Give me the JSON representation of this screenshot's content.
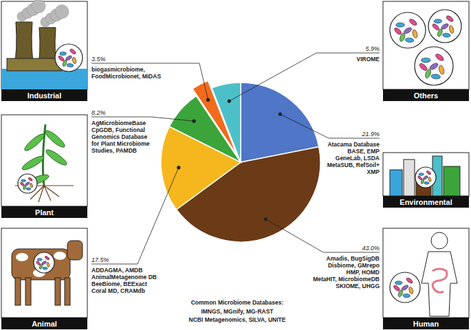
{
  "chart_data": {
    "type": "pie",
    "categories": [
      "Environmental",
      "Human",
      "Animal",
      "Plant",
      "Industrial",
      "Others"
    ],
    "values": [
      21.9,
      43.0,
      17.5,
      8.2,
      3.5,
      5.9
    ],
    "value_labels": [
      "21.9%",
      "43.0%",
      "17.5%",
      "8.2%",
      "3.5%",
      "5.9%"
    ],
    "colors": [
      "#4f76c7",
      "#6b3a17",
      "#f5b71d",
      "#3ba53b",
      "#f26b1d",
      "#4cc0c9"
    ],
    "data_labels": true,
    "databases": [
      [
        "Atacama Database",
        "BASE, EMP",
        "GeneLab, LSDA",
        "MetaSUB, RefSoil+",
        "XMP"
      ],
      [
        "Amadis, BugSigDB",
        "Disbiome, GMrepo",
        "HMP, HOMD",
        "MetaHIT, MicrobiomeDB",
        "SKIOME, UHGG"
      ],
      [
        "ADDAGMA, AMDB",
        "AnimalMetagenome DB",
        "BeeBiome, BEExact",
        "Coral MD, CRAMdb"
      ],
      [
        "AgMicrobiomeBase",
        "CpGDB, Functional",
        "Genomics Database",
        "for Plant Microbiome",
        "Studies, PAMDB"
      ],
      [
        "biogasmicrobiome,",
        "FoodMicrobionet, MiDAS"
      ],
      [
        "VIROME"
      ]
    ],
    "footnote": {
      "title": "Common Microbiome Databases:",
      "lines": [
        "IMNGS, MGnify, MG-RAST",
        "NCBI Metagenomics, SILVA, UNITE"
      ]
    }
  }
}
